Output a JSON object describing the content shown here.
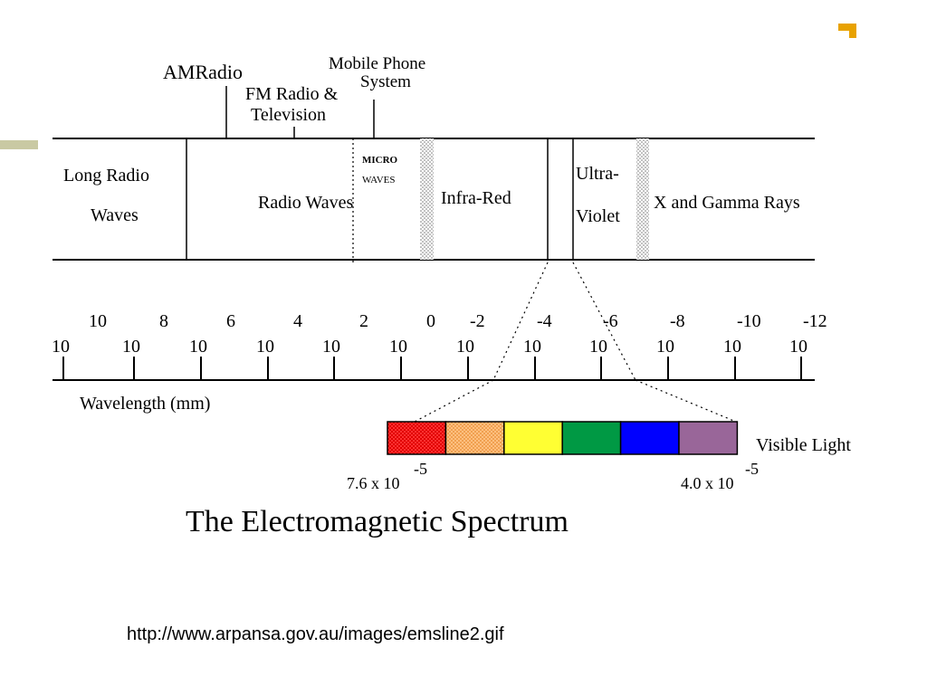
{
  "diagram": {
    "title": "The Electromagnetic Spectrum",
    "top_labels": {
      "am_radio": "AMRadio",
      "fm_line1": "FM Radio &",
      "fm_line2": "Television",
      "mobile_line1": "Mobile Phone",
      "mobile_line2": "System"
    },
    "bands": {
      "long_radio_line1": "Long Radio",
      "long_radio_line2": "Waves",
      "radio_waves": "Radio Waves",
      "micro_line1": "MICRO",
      "micro_line2": "WAVES",
      "infra_red": "Infra-Red",
      "ultra_line1": "Ultra-",
      "ultra_line2": "Violet",
      "x_gamma": "X and Gamma Rays"
    },
    "scale": {
      "base": "10",
      "exponents": [
        "10",
        "8",
        "6",
        "4",
        "2",
        "0",
        "-2",
        "-4",
        "-6",
        "-8",
        "-10",
        "-12"
      ],
      "axis_label": "Wavelength (mm)"
    },
    "visible": {
      "label": "Visible Light",
      "left_value": "7.6 x 10",
      "left_exp": "-5",
      "right_value": "4.0 x 10",
      "right_exp": "-5",
      "colors": [
        "#ff1a1a",
        "#ffb36b",
        "#ffff33",
        "#009944",
        "#0000ff",
        "#996699"
      ]
    }
  },
  "source_url": "http://www.arpansa.gov.au/images/emsline2.gif",
  "theme": {
    "accent": "#e8a200",
    "side_bar": "#c9c9a3"
  }
}
